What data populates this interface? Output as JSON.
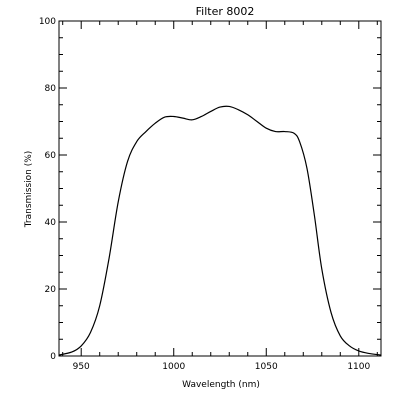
{
  "chart_data": {
    "type": "line",
    "title": "Filter 8002",
    "xlabel": "Wavelength (nm)",
    "ylabel": "Transmission (%)",
    "xlim": [
      938,
      1112
    ],
    "ylim": [
      0,
      100
    ],
    "x_ticks": [
      950,
      1000,
      1050,
      1100
    ],
    "y_ticks": [
      0,
      20,
      40,
      60,
      80,
      100
    ],
    "x_minor_step": 10,
    "y_minor_step": 5,
    "grid": false,
    "colors": {
      "line": "#000000",
      "axes": "#000000",
      "background": "#ffffff"
    },
    "series": [
      {
        "x": [
          938,
          945,
          950,
          955,
          960,
          965,
          970,
          975,
          980,
          985,
          990,
          995,
          1000,
          1005,
          1010,
          1015,
          1020,
          1025,
          1030,
          1035,
          1040,
          1045,
          1050,
          1055,
          1060,
          1065,
          1068,
          1072,
          1076,
          1080,
          1085,
          1090,
          1095,
          1100,
          1105,
          1112
        ],
        "y": [
          0.3,
          1.2,
          3,
          7,
          15,
          29,
          46,
          58,
          64,
          67,
          69.5,
          71.3,
          71.5,
          71,
          70.5,
          71.5,
          73,
          74.3,
          74.5,
          73.5,
          72,
          70,
          68,
          67,
          67,
          66.5,
          64,
          56,
          42,
          26,
          13,
          6,
          3,
          1.5,
          0.8,
          0.3
        ]
      }
    ]
  }
}
